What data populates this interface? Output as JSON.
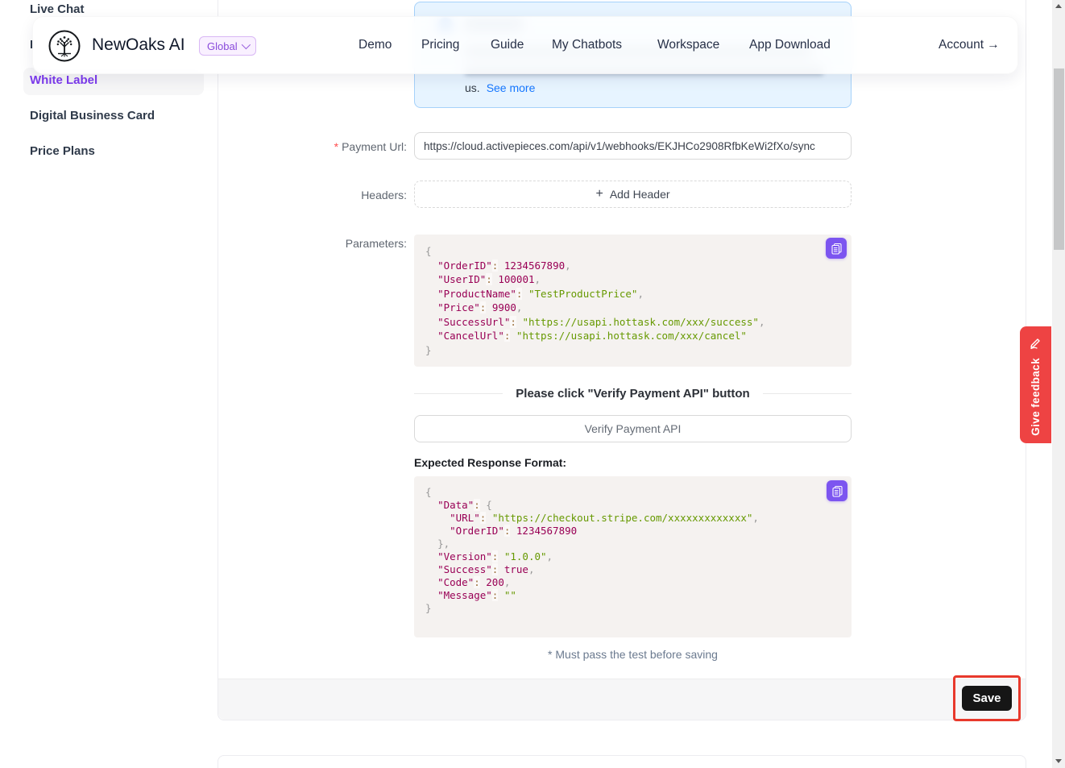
{
  "header": {
    "brand": "NewOaks AI",
    "region": "Global",
    "nav": [
      "Demo",
      "Pricing",
      "Guide",
      "My Chatbots",
      "Workspace",
      "App Download"
    ],
    "account_label": "Account →"
  },
  "sidebar": {
    "items": [
      {
        "label": "Live Chat",
        "active": false
      },
      {
        "label": "I",
        "active": false
      },
      {
        "label": "White Label",
        "active": true
      },
      {
        "label": "Digital Business Card",
        "active": false
      },
      {
        "label": "Price Plans",
        "active": false
      }
    ]
  },
  "reminder": {
    "trailing_text": "us.",
    "see_more_label": "See more"
  },
  "form": {
    "required_mark": "*",
    "payment_url_label": "Payment Url:",
    "payment_url_value": "https://cloud.activepieces.com/api/v1/webhooks/EKJHCo2908RfbKeWi2fXo/sync",
    "headers_label": "Headers:",
    "add_header_plus": "+",
    "add_header_label": "Add Header",
    "parameters_label": "Parameters:",
    "parameters_code": "{\n  \"OrderID\": 1234567890,\n  \"UserID\": 100001,\n  \"ProductName\": \"TestProductPrice\",\n  \"Price\": 9900,\n  \"SuccessUrl\": \"https://usapi.hottask.com/xxx/success\",\n  \"CancelUrl\": \"https://usapi.hottask.com/xxx/cancel\"\n}",
    "divider_text": "Please click \"Verify Payment API\" button",
    "verify_button_label": "Verify Payment API",
    "expected_response_label": "Expected Response Format:",
    "expected_response_code": "{\n  \"Data\": {\n    \"URL\": \"https://checkout.stripe.com/xxxxxxxxxxxxx\",\n    \"OrderID\": 1234567890\n  },\n  \"Version\": \"1.0.0\",\n  \"Success\": true,\n  \"Code\": 200,\n  \"Message\": \"\"\n}",
    "footnote": "* Must pass the test before saving",
    "save_label": "Save"
  },
  "feedback": {
    "label": "Give feedback"
  },
  "colors": {
    "accent_purple": "#7c3aed",
    "link_blue": "#1677ff",
    "reminder_bg": "#e7f4ff",
    "code_bg": "#f5f2f0",
    "code_key": "#990055",
    "code_string": "#669900",
    "copy_button_purple": "#7c55f0",
    "feedback_red": "#ee4343",
    "annotation_red": "#e8392c",
    "save_black": "#161616"
  }
}
